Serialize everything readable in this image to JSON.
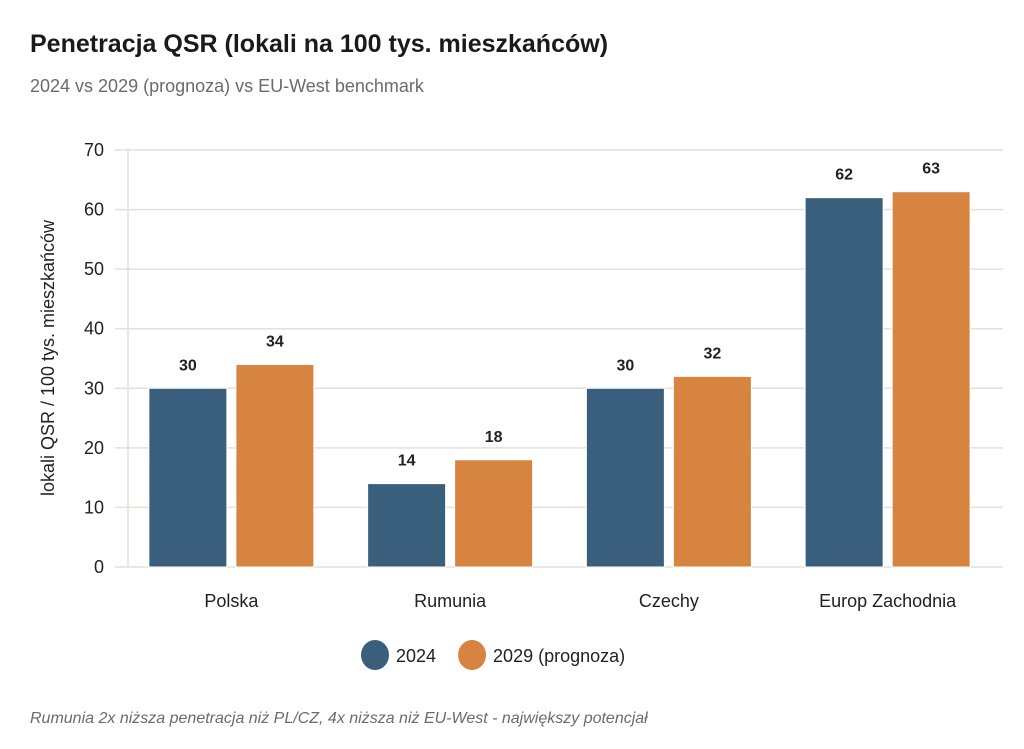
{
  "chart_data": {
    "type": "bar",
    "title": "Penetracja QSR (lokali na 100 tys. mieszkańców)",
    "subtitle": "2024 vs 2029 (prognoza) vs EU-West benchmark",
    "ylabel": "lokali QSR / 100 tys. mieszkańców",
    "xlabel": "",
    "ylim": [
      0,
      70
    ],
    "yticks": [
      0,
      10,
      20,
      30,
      40,
      50,
      60,
      70
    ],
    "grid": true,
    "legend_position": "bottom",
    "categories": [
      "Polska",
      "Rumunia",
      "Czechy",
      "Europ Zachodnia"
    ],
    "series": [
      {
        "name": "2024",
        "values": [
          30,
          14,
          30,
          62
        ],
        "color": "#3a5f7d"
      },
      {
        "name": "2029 (prognoza)",
        "values": [
          34,
          18,
          32,
          63
        ],
        "color": "#d6843f"
      }
    ],
    "annotation": "Rumunia 2x niższa penetracja niż PL/CZ, 4x niższa niż EU-West - największy potencjał"
  }
}
